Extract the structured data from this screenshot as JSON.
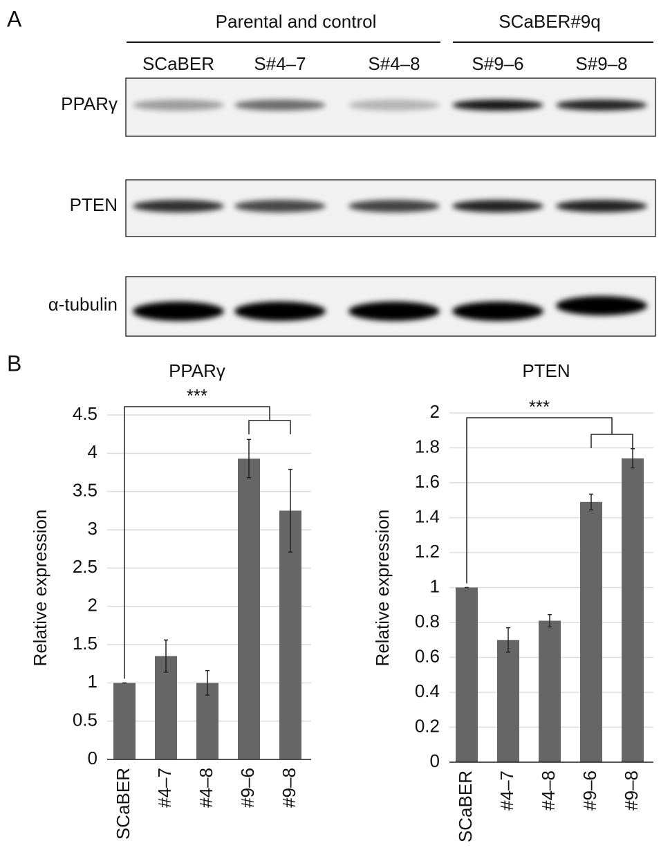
{
  "panel_a": {
    "label": "A",
    "groups": [
      "Parental and control",
      "SCaBER#9q"
    ],
    "lanes": [
      "SCaBER",
      "S#4–7",
      "S#4–8",
      "S#9–6",
      "S#9–8"
    ],
    "rows": [
      "PPARγ",
      "PTEN",
      "α-tubulin"
    ]
  },
  "panel_b_label": "B",
  "chart_data": [
    {
      "type": "bar",
      "title": "PPARγ",
      "y_label": "Relative expression",
      "categories": [
        "SCaBER",
        "#4–7",
        "#4–8",
        "#9–6",
        "#9–8"
      ],
      "values": [
        1.0,
        1.35,
        1.0,
        3.93,
        3.25
      ],
      "errors": [
        0,
        0.21,
        0.16,
        0.25,
        0.54
      ],
      "color": "#666666",
      "ylim": [
        0,
        4.5
      ],
      "yticks": [
        0,
        0.5,
        1,
        1.5,
        2,
        2.5,
        3,
        3.5,
        4,
        4.5
      ],
      "grid": true,
      "annotation": "***"
    },
    {
      "type": "bar",
      "title": "PTEN",
      "y_label": "Relative expression",
      "categories": [
        "SCaBER",
        "#4–7",
        "#4–8",
        "#9–6",
        "#9–8"
      ],
      "values": [
        1.0,
        0.7,
        0.81,
        1.49,
        1.74
      ],
      "errors": [
        0,
        0.07,
        0.035,
        0.045,
        0.055
      ],
      "color": "#666666",
      "ylim": [
        0,
        2
      ],
      "yticks": [
        0,
        0.2,
        0.4,
        0.6,
        0.8,
        1,
        1.2,
        1.4,
        1.6,
        1.8,
        2
      ],
      "grid": true,
      "annotation": "***"
    }
  ]
}
